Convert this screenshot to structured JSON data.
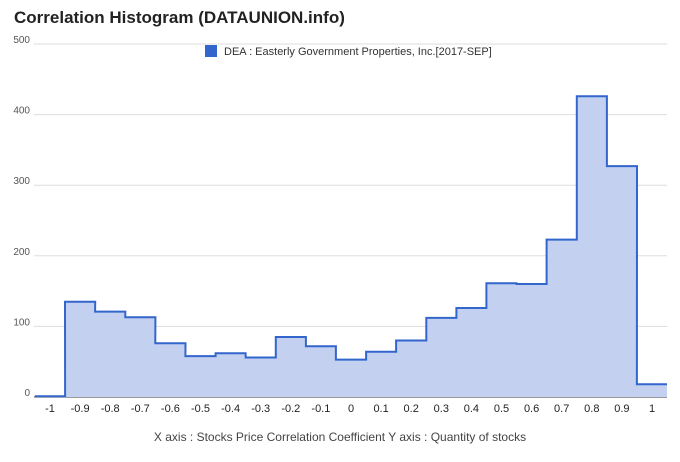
{
  "chart_data": {
    "type": "area",
    "title": "Correlation Histogram (DATAUNION.info)",
    "xlabel": "X axis : Stocks Price Correlation Coefficient",
    "ylabel": "Y axis : Quantity of stocks",
    "legend": {
      "position": "top",
      "entries": [
        "DEA : Easterly Government Properties, Inc.[2017-SEP]"
      ]
    },
    "grid": true,
    "xlim": [
      -1.05,
      1.05
    ],
    "ylim": [
      0,
      500
    ],
    "yticks": [
      0,
      100,
      200,
      300,
      400,
      500
    ],
    "xticks": [
      -1,
      -0.9,
      -0.8,
      -0.7,
      -0.6,
      -0.5,
      -0.4,
      -0.3,
      -0.2,
      -0.1,
      0,
      0.1,
      0.2,
      0.3,
      0.4,
      0.5,
      0.6,
      0.7,
      0.8,
      0.9,
      1
    ],
    "xtick_labels": [
      "-1",
      "-0.9",
      "-0.8",
      "-0.7",
      "-0.6",
      "-0.5",
      "-0.4",
      "-0.3",
      "-0.2",
      "-0.1",
      "0",
      "0.1",
      "0.2",
      "0.3",
      "0.4",
      "0.5",
      "0.6",
      "0.7",
      "0.8",
      "0.9",
      "1"
    ],
    "series": [
      {
        "name": "DEA : Easterly Government Properties, Inc.[2017-SEP]",
        "x": [
          -1,
          -0.9,
          -0.8,
          -0.7,
          -0.6,
          -0.5,
          -0.4,
          -0.3,
          -0.2,
          -0.1,
          0,
          0.1,
          0.2,
          0.3,
          0.4,
          0.5,
          0.6,
          0.7,
          0.8,
          0.9,
          1
        ],
        "values": [
          1,
          135,
          121,
          113,
          76,
          58,
          62,
          56,
          85,
          72,
          53,
          64,
          80,
          112,
          126,
          161,
          160,
          223,
          426,
          327,
          18
        ]
      }
    ],
    "colors": {
      "line": "#3366cc",
      "fill": "#c3d0f0",
      "grid": "#dddddd"
    }
  }
}
